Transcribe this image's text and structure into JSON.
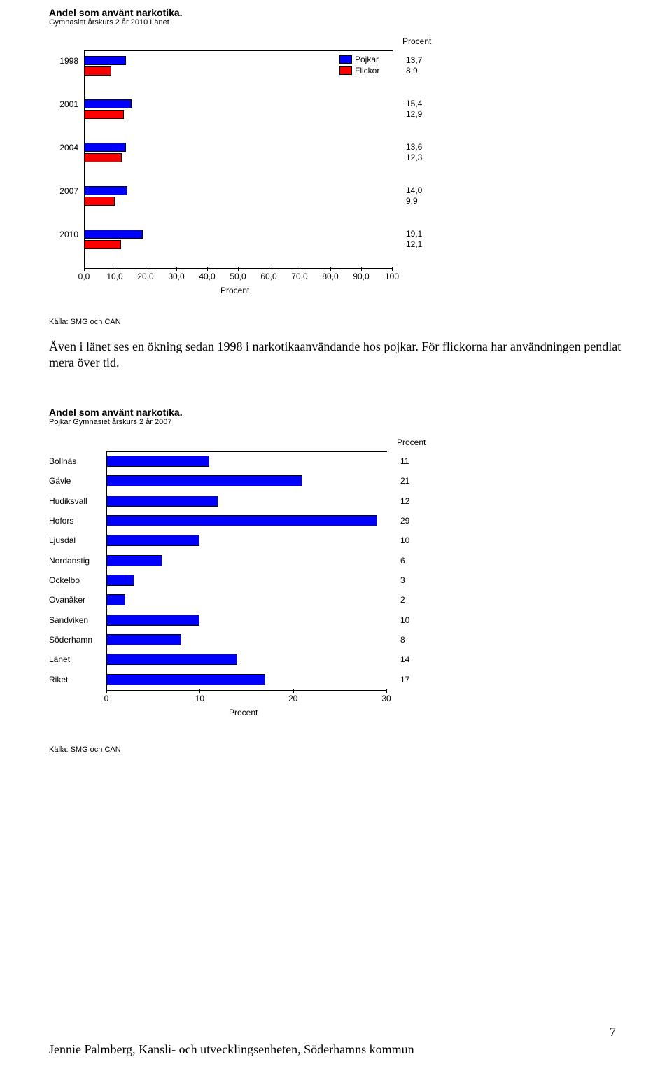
{
  "chart1": {
    "title": "Andel som använt narkotika.",
    "subtitle": "Gymnasiet årskurs 2 år 2010 Länet",
    "type": "bar_grouped_horizontal",
    "top_right_label": "Procent",
    "x_axis_label": "Procent",
    "x_min": 0,
    "x_max": 100,
    "x_ticks": [
      "0,0",
      "10,0",
      "20,0",
      "30,0",
      "40,0",
      "50,0",
      "60,0",
      "70,0",
      "80,0",
      "90,0",
      "100"
    ],
    "categories": [
      "1998",
      "2001",
      "2004",
      "2007",
      "2010"
    ],
    "series": [
      {
        "name": "Pojkar",
        "color": "#0000ff"
      },
      {
        "name": "Flickor",
        "color": "#ff0000"
      }
    ],
    "data": [
      {
        "cat": "1998",
        "pojkar": 13.7,
        "flickor": 8.9,
        "pojkar_lbl": "13,7",
        "flickor_lbl": "8,9"
      },
      {
        "cat": "2001",
        "pojkar": 15.4,
        "flickor": 12.9,
        "pojkar_lbl": "15,4",
        "flickor_lbl": "12,9"
      },
      {
        "cat": "2004",
        "pojkar": 13.6,
        "flickor": 12.3,
        "pojkar_lbl": "13,6",
        "flickor_lbl": "12,3"
      },
      {
        "cat": "2007",
        "pojkar": 14.0,
        "flickor": 9.9,
        "pojkar_lbl": "14,0",
        "flickor_lbl": "9,9"
      },
      {
        "cat": "2010",
        "pojkar": 19.1,
        "flickor": 12.1,
        "pojkar_lbl": "19,1",
        "flickor_lbl": "12,1"
      }
    ],
    "legend_items": [
      {
        "label": "Pojkar",
        "color": "#0000ff"
      },
      {
        "label": "Flickor",
        "color": "#ff0000"
      }
    ],
    "source": "Källa: SMG och CAN"
  },
  "body_text": "Även i länet ses en ökning sedan 1998 i narkotikaanvändande hos pojkar. För flickorna har användningen pendlat mera över tid.",
  "chart2": {
    "title": "Andel som använt narkotika.",
    "subtitle": "Pojkar Gymnasiet årskurs 2 år 2007",
    "type": "bar_horizontal",
    "top_right_label": "Procent",
    "x_axis_label": "Procent",
    "x_min": 0,
    "x_max": 30,
    "x_ticks": [
      "0",
      "10",
      "20",
      "30"
    ],
    "bar_color": "#0000ff",
    "data": [
      {
        "cat": "Bollnäs",
        "value": 11,
        "lbl": "11"
      },
      {
        "cat": "Gävle",
        "value": 21,
        "lbl": "21"
      },
      {
        "cat": "Hudiksvall",
        "value": 12,
        "lbl": "12"
      },
      {
        "cat": "Hofors",
        "value": 29,
        "lbl": "29"
      },
      {
        "cat": "Ljusdal",
        "value": 10,
        "lbl": "10"
      },
      {
        "cat": "Nordanstig",
        "value": 6,
        "lbl": "6"
      },
      {
        "cat": "Ockelbo",
        "value": 3,
        "lbl": "3"
      },
      {
        "cat": "Ovanåker",
        "value": 2,
        "lbl": "2"
      },
      {
        "cat": "Sandviken",
        "value": 10,
        "lbl": "10"
      },
      {
        "cat": "Söderhamn",
        "value": 8,
        "lbl": "8"
      },
      {
        "cat": "Länet",
        "value": 14,
        "lbl": "14"
      },
      {
        "cat": "Riket",
        "value": 17,
        "lbl": "17"
      }
    ],
    "source": "Källa: SMG och CAN"
  },
  "page_number": "7",
  "footer": "Jennie Palmberg, Kansli- och utvecklingsenheten, Söderhamns kommun"
}
